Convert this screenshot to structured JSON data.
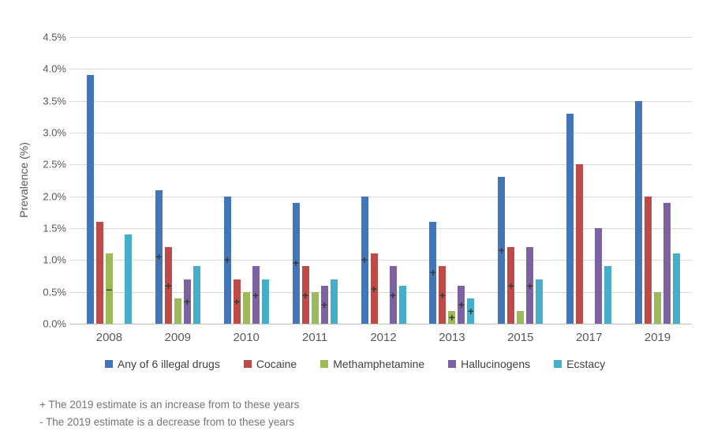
{
  "chart_data": {
    "type": "bar",
    "title": "",
    "xlabel": "",
    "ylabel": "Prevalence (%)",
    "ylim": [
      0,
      4.5
    ],
    "y_tick_step": 0.5,
    "y_ticks": [
      "0.0%",
      "0.5%",
      "1.0%",
      "1.5%",
      "2.0%",
      "2.5%",
      "3.0%",
      "3.5%",
      "4.0%",
      "4.5%"
    ],
    "grid": true,
    "legend_position": "bottom",
    "categories": [
      "2008",
      "2009",
      "2010",
      "2011",
      "2012",
      "2013",
      "2015",
      "2017",
      "2019"
    ],
    "series": [
      {
        "name": "Any of 6 illegal drugs",
        "color": "#4376b8",
        "values": [
          3.9,
          2.1,
          2.0,
          1.9,
          2.0,
          1.6,
          2.3,
          3.3,
          3.5
        ],
        "markers": [
          "",
          "+",
          "+",
          "+",
          "+",
          "+",
          "+",
          "",
          ""
        ]
      },
      {
        "name": "Cocaine",
        "color": "#be4b48",
        "values": [
          1.6,
          1.2,
          0.7,
          0.9,
          1.1,
          0.9,
          1.2,
          2.5,
          2.0
        ],
        "markers": [
          "",
          "+",
          "+",
          "+",
          "+",
          "+",
          "+",
          "",
          ""
        ]
      },
      {
        "name": "Methamphetamine",
        "color": "#9cbb58",
        "values": [
          1.1,
          0.4,
          0.5,
          0.5,
          null,
          0.2,
          0.2,
          null,
          0.5
        ],
        "markers": [
          "-",
          "",
          "",
          "",
          "",
          "+",
          "",
          "",
          ""
        ]
      },
      {
        "name": "Hallucinogens",
        "color": "#7d62a1",
        "values": [
          null,
          0.7,
          0.9,
          0.6,
          0.9,
          0.6,
          1.2,
          1.5,
          1.9
        ],
        "markers": [
          "",
          "+",
          "+",
          "+",
          "+",
          "+",
          "+",
          "",
          ""
        ]
      },
      {
        "name": "Ecstacy",
        "color": "#45aecb",
        "values": [
          1.4,
          0.9,
          0.7,
          0.7,
          0.6,
          0.4,
          0.7,
          0.9,
          1.1
        ],
        "markers": [
          "",
          "",
          "",
          "",
          "",
          "+",
          "",
          "",
          ""
        ]
      }
    ],
    "marker_legend": {
      "plus": "+",
      "minus": "-"
    }
  },
  "footnotes": {
    "plus": "+ The 2019 estimate is an increase from to these years",
    "minus": "- The 2019 estimate is a decrease from to these years"
  }
}
